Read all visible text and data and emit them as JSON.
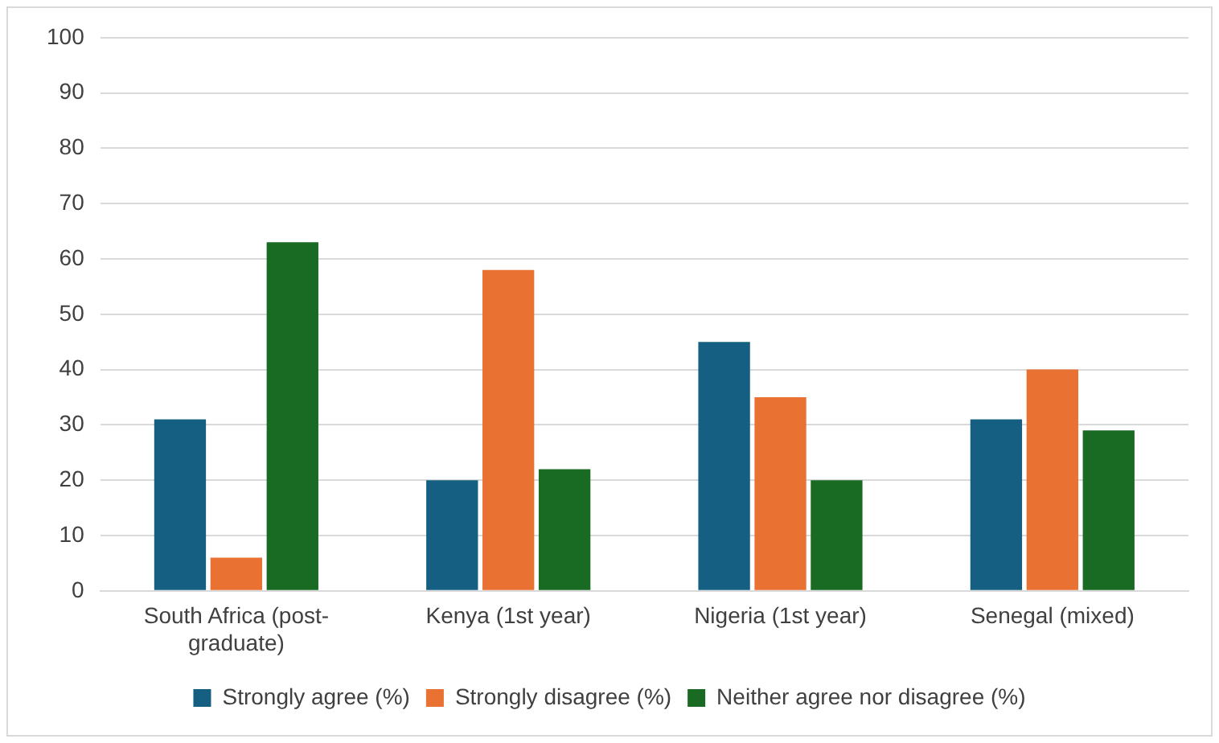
{
  "chart_data": {
    "type": "bar",
    "categories": [
      "South Africa (post-graduate)",
      "Kenya (1st year)",
      "Nigeria (1st year)",
      "Senegal (mixed)"
    ],
    "series": [
      {
        "name": "Strongly agree (%)",
        "color": "#156082",
        "values": [
          31,
          20,
          45,
          31
        ]
      },
      {
        "name": "Strongly disagree (%)",
        "color": "#e97132",
        "values": [
          6,
          58,
          35,
          40
        ]
      },
      {
        "name": "Neither agree nor disagree (%)",
        "color": "#196b24",
        "values": [
          63,
          22,
          20,
          29
        ]
      }
    ],
    "ylim": [
      0,
      100
    ],
    "yticks": [
      0,
      10,
      20,
      30,
      40,
      50,
      60,
      70,
      80,
      90,
      100
    ],
    "grid": "y",
    "legend": "bottom"
  }
}
